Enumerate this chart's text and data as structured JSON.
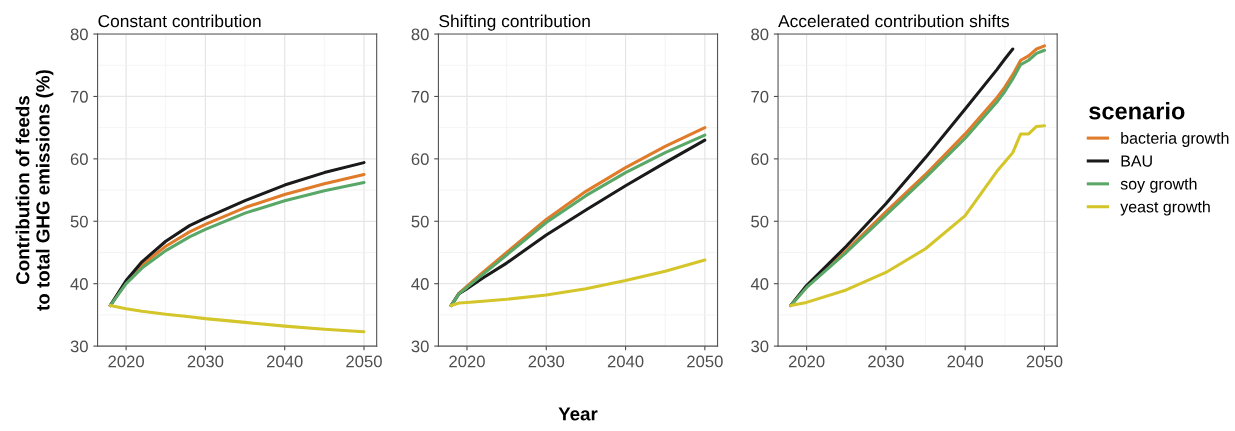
{
  "chart_data": [
    {
      "type": "line",
      "title": "Constant contribution",
      "ylabel": "Contribution of feeds\nto total GHG emissions (%)",
      "xlim": [
        2016.4,
        2051.6
      ],
      "xticks": [
        2020,
        2030,
        2040,
        2050
      ],
      "ylim": [
        30,
        80
      ],
      "yticks": [
        30,
        40,
        50,
        60,
        70,
        80
      ],
      "grid": true,
      "x": [
        2018,
        2020,
        2022,
        2025,
        2028,
        2030,
        2035,
        2040,
        2045,
        2050
      ],
      "series": [
        {
          "color": "#e07b2a",
          "values": [
            36.5,
            40.2,
            43.0,
            46.0,
            48.3,
            49.5,
            52.2,
            54.3,
            56.0,
            57.5
          ]
        },
        {
          "color": "#1a1a1a",
          "values": [
            36.5,
            40.5,
            43.5,
            46.8,
            49.3,
            50.5,
            53.3,
            55.8,
            57.8,
            59.4
          ]
        },
        {
          "color": "#5aa867",
          "values": [
            36.5,
            40.0,
            42.5,
            45.3,
            47.5,
            48.7,
            51.3,
            53.3,
            54.9,
            56.2
          ]
        },
        {
          "color": "#d4c62a",
          "values": [
            36.5,
            36.0,
            35.6,
            35.1,
            34.7,
            34.4,
            33.8,
            33.2,
            32.7,
            32.3
          ]
        }
      ]
    },
    {
      "type": "line",
      "title": "Shifting contribution",
      "xlabel": "Year",
      "xlim": [
        2016.4,
        2051.6
      ],
      "xticks": [
        2020,
        2030,
        2040,
        2050
      ],
      "ylim": [
        30,
        80
      ],
      "yticks": [
        30,
        40,
        50,
        60,
        70,
        80
      ],
      "grid": true,
      "x": [
        2018,
        2019,
        2020,
        2022,
        2025,
        2030,
        2035,
        2040,
        2045,
        2050
      ],
      "series": [
        {
          "color": "#e07b2a",
          "values": [
            36.5,
            38.5,
            39.6,
            41.8,
            45.0,
            50.3,
            54.8,
            58.6,
            62.0,
            65.0
          ]
        },
        {
          "color": "#1a1a1a",
          "values": [
            36.5,
            38.4,
            39.2,
            40.9,
            43.3,
            47.8,
            51.8,
            55.7,
            59.4,
            63.0
          ]
        },
        {
          "color": "#5aa867",
          "values": [
            36.5,
            38.4,
            39.4,
            41.5,
            44.6,
            49.8,
            54.1,
            57.8,
            61.0,
            63.8
          ]
        },
        {
          "color": "#d4c62a",
          "values": [
            36.5,
            36.9,
            37.0,
            37.2,
            37.5,
            38.2,
            39.2,
            40.5,
            42.0,
            43.8
          ]
        }
      ]
    },
    {
      "type": "line",
      "title": "Accelerated contribution shifts",
      "legend_title": "scenario",
      "legend": "right",
      "xlim": [
        2016.4,
        2051.6
      ],
      "xticks": [
        2020,
        2030,
        2040,
        2050
      ],
      "ylim": [
        30,
        80
      ],
      "yticks": [
        30,
        40,
        50,
        60,
        70,
        80
      ],
      "grid": true,
      "x": [
        2018,
        2020,
        2025,
        2030,
        2035,
        2040,
        2044,
        2045,
        2046,
        2047,
        2048,
        2049,
        2050
      ],
      "series": [
        {
          "name": "bacteria growth",
          "color": "#e07b2a",
          "values": [
            36.5,
            39.5,
            45.3,
            51.5,
            57.5,
            64.0,
            69.8,
            71.5,
            73.5,
            75.8,
            76.5,
            77.6,
            78.1
          ]
        },
        {
          "name": "BAU",
          "color": "#1a1a1a",
          "values": [
            36.5,
            39.7,
            46.0,
            52.8,
            60.2,
            68.0,
            74.3,
            76.0,
            77.6,
            null,
            null,
            null,
            null
          ]
        },
        {
          "name": "soy growth",
          "color": "#5aa867",
          "values": [
            36.5,
            39.4,
            45.0,
            51.0,
            57.0,
            63.3,
            69.1,
            70.8,
            72.8,
            75.1,
            75.8,
            76.9,
            77.4
          ]
        },
        {
          "name": "yeast growth",
          "color": "#d4c62a",
          "values": [
            36.5,
            37.0,
            39.0,
            41.8,
            45.6,
            50.9,
            58.0,
            59.5,
            61.0,
            64.0,
            64.0,
            65.2,
            65.3
          ]
        }
      ]
    }
  ]
}
